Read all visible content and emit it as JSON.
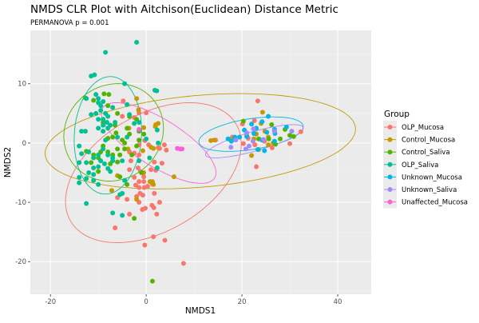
{
  "chart_data": {
    "type": "scatter",
    "title": "NMDS CLR Plot with Aitchison(Euclidean) Distance Metric",
    "subtitle": "PERMANOVA p = 0.001",
    "xlabel": "NMDS1",
    "ylabel": "NMDS2",
    "xlim": [
      -24.2,
      47
    ],
    "ylim": [
      -25.5,
      19
    ],
    "xticks": [
      -20,
      0,
      20,
      40
    ],
    "yticks": [
      -20,
      -10,
      0,
      10
    ],
    "xtick_labels": [
      "-20",
      "0",
      "20",
      "40"
    ],
    "ytick_labels": [
      "-20",
      "-10",
      "0",
      "10"
    ],
    "grid": true,
    "legend": {
      "title": "Group",
      "position": "right"
    },
    "series": [
      {
        "name": "OLP_Mucosa",
        "color": "#F8766D",
        "ellipse": {
          "center": [
            1.5,
            -5
          ],
          "axis1": [
            16,
            9.5
          ],
          "axis2": [
            -9,
            7
          ]
        },
        "points": [
          [
            -4.8,
            7.1
          ],
          [
            -1.5,
            5.1
          ],
          [
            0,
            5.1
          ],
          [
            -5,
            4.5
          ],
          [
            -2.5,
            4.3
          ],
          [
            -3.5,
            -1.5
          ],
          [
            -2.5,
            -1.7
          ],
          [
            -1.5,
            -0.3
          ],
          [
            0.5,
            -0.3
          ],
          [
            2.5,
            -0.8
          ],
          [
            3.8,
            -0.3
          ],
          [
            4.2,
            -1.2
          ],
          [
            2.8,
            -0.9
          ],
          [
            -1.5,
            -2
          ],
          [
            -0.3,
            0.4
          ],
          [
            -3.2,
            -3
          ],
          [
            -1.7,
            -4.2
          ],
          [
            -3.5,
            -4.5
          ],
          [
            -1.2,
            -4.8
          ],
          [
            1.7,
            -3.2
          ],
          [
            3.3,
            -3.4
          ],
          [
            1,
            -4.5
          ],
          [
            2,
            -4.6
          ],
          [
            -2.5,
            -5.8
          ],
          [
            -0.5,
            -5.7
          ],
          [
            -1.5,
            -6.5
          ],
          [
            -0.5,
            -6.5
          ],
          [
            -1.5,
            -7.5
          ],
          [
            -0.4,
            -7.5
          ],
          [
            0.3,
            -7.3
          ],
          [
            -2.2,
            -7.1
          ],
          [
            -1.3,
            -8.5
          ],
          [
            -0.7,
            -8.8
          ],
          [
            -2,
            -9
          ],
          [
            -4,
            -9.5
          ],
          [
            -6,
            -9.2
          ],
          [
            -1.5,
            -10
          ],
          [
            2.8,
            -10
          ],
          [
            1.7,
            -8.5
          ],
          [
            1.3,
            -6.9
          ],
          [
            -0.2,
            -11
          ],
          [
            -0.8,
            -11.2
          ],
          [
            1.2,
            -10.5
          ],
          [
            1.6,
            -10.9
          ],
          [
            -3.5,
            -12
          ],
          [
            2.2,
            -12
          ],
          [
            -6.5,
            -14.3
          ],
          [
            1.5,
            -15.8
          ],
          [
            3.9,
            -16.4
          ],
          [
            -0.3,
            -17.2
          ],
          [
            7.8,
            -20.3
          ],
          [
            23.3,
            7.1
          ],
          [
            22.6,
            3.8
          ],
          [
            20.1,
            3.2
          ],
          [
            18,
            1
          ],
          [
            20.3,
            -0.1
          ],
          [
            21.3,
            0.8
          ],
          [
            22.7,
            -0.3
          ],
          [
            24.7,
            0.3
          ],
          [
            26.3,
            -0.8
          ],
          [
            30,
            -0.1
          ],
          [
            32.3,
            1.9
          ],
          [
            23,
            -4
          ],
          [
            14.5,
            0.5
          ]
        ]
      },
      {
        "name": "Control_Mucosa",
        "color": "#C49A00",
        "ellipse": {
          "center": [
            11.3,
            0.3
          ],
          "axis1": [
            32.4,
            2.3
          ],
          "axis2": [
            -1,
            7.7
          ]
        },
        "points": [
          [
            -2,
            7.5
          ],
          [
            -1.6,
            5.6
          ],
          [
            -0.5,
            2.6
          ],
          [
            2.5,
            3.3
          ],
          [
            1.9,
            2.8
          ],
          [
            2,
            3.1
          ],
          [
            -3.6,
            2.5
          ],
          [
            -3.8,
            -1
          ],
          [
            -0.7,
            -1.3
          ],
          [
            1,
            -0.7
          ],
          [
            1.5,
            -0.9
          ],
          [
            -0.5,
            -5
          ],
          [
            1.3,
            -6.5
          ],
          [
            1.5,
            -7
          ],
          [
            0.8,
            -6.5
          ],
          [
            -2,
            -9.5
          ],
          [
            5.8,
            -5.7
          ],
          [
            -7.2,
            -8
          ],
          [
            -6,
            -5.5
          ],
          [
            13.5,
            0.4
          ],
          [
            14.2,
            0.5
          ],
          [
            24.3,
            5.2
          ],
          [
            23,
            1.5
          ],
          [
            22.5,
            0.7
          ],
          [
            21,
            1.3
          ],
          [
            22,
            -2.1
          ],
          [
            23.5,
            -1.1
          ],
          [
            25.5,
            1
          ],
          [
            26.5,
            0
          ],
          [
            24,
            3.3
          ],
          [
            25.5,
            -0.3
          ],
          [
            19.5,
            1
          ],
          [
            17.8,
            0.6
          ],
          [
            22.7,
            1.6
          ],
          [
            24.8,
            2
          ]
        ]
      },
      {
        "name": "Control_Saliva",
        "color": "#53B400",
        "ellipse": {
          "center": [
            -6.8,
            1.8
          ],
          "axis1": [
            10.3,
            -0.5
          ],
          "axis2": [
            1.5,
            8.2
          ]
        },
        "points": [
          [
            -7.8,
            8.2
          ],
          [
            -8.8,
            8.3
          ],
          [
            -12.7,
            7.6
          ],
          [
            -11,
            7.2
          ],
          [
            -8,
            6.3
          ],
          [
            -6,
            5
          ],
          [
            -3.5,
            4.5
          ],
          [
            -2,
            4
          ],
          [
            -1.5,
            2
          ],
          [
            -0.5,
            1.5
          ],
          [
            -4,
            2.5
          ],
          [
            -6.3,
            1.7
          ],
          [
            -5,
            0.5
          ],
          [
            -3.5,
            1.5
          ],
          [
            -2,
            -0.5
          ],
          [
            -7,
            1
          ],
          [
            -8,
            0.8
          ],
          [
            -9,
            -0.5
          ],
          [
            -6,
            -1
          ],
          [
            -5.5,
            -2
          ],
          [
            -7,
            -2
          ],
          [
            -8,
            -1.5
          ],
          [
            -10,
            -2.5
          ],
          [
            -11,
            -2
          ],
          [
            -12.5,
            -1.4
          ],
          [
            -3,
            -2
          ],
          [
            -4.5,
            -1
          ],
          [
            -6,
            -3.2
          ],
          [
            -7.5,
            -3.5
          ],
          [
            -9.5,
            -1.5
          ],
          [
            -11.5,
            -3.3
          ],
          [
            -5.5,
            -5.7
          ],
          [
            -4,
            -7
          ],
          [
            -1,
            -5
          ],
          [
            -2.5,
            -12.7
          ],
          [
            1.3,
            -23.3
          ],
          [
            -9,
            3.5
          ],
          [
            -6.5,
            3
          ],
          [
            -4.5,
            0
          ],
          [
            -1.5,
            0.5
          ],
          [
            20.3,
            3.7
          ],
          [
            26.2,
            3.1
          ],
          [
            28,
            0.7
          ],
          [
            29,
            2.3
          ],
          [
            30,
            1.3
          ],
          [
            30.8,
            1.1
          ],
          [
            27,
            -0.2
          ],
          [
            23.5,
            0.7
          ],
          [
            25.6,
            0.7
          ],
          [
            -10,
            -4.8
          ]
        ]
      },
      {
        "name": "OLP_Saliva",
        "color": "#00C094",
        "ellipse": {
          "center": [
            -8,
            1.3
          ],
          "axis1": [
            0.8,
            9.9
          ],
          "axis2": [
            7,
            -0.4
          ]
        },
        "points": [
          [
            -2,
            17
          ],
          [
            -8.5,
            15.3
          ],
          [
            -11.5,
            11.3
          ],
          [
            -10.8,
            11.5
          ],
          [
            -4.5,
            10
          ],
          [
            1.8,
            8.9
          ],
          [
            2.2,
            8.8
          ],
          [
            -10.5,
            8.2
          ],
          [
            -12.5,
            7.5
          ],
          [
            -10,
            7.5
          ],
          [
            -9,
            7
          ],
          [
            -10,
            6.8
          ],
          [
            -9.5,
            6.3
          ],
          [
            -7,
            6
          ],
          [
            -4,
            6.5
          ],
          [
            -10.5,
            5
          ],
          [
            -11.5,
            4.8
          ],
          [
            -9.5,
            5.5
          ],
          [
            -8.5,
            5
          ],
          [
            -8,
            4.5
          ],
          [
            -9,
            4
          ],
          [
            -10,
            4
          ],
          [
            -8.2,
            3.5
          ],
          [
            -7.5,
            3
          ],
          [
            -9,
            3
          ],
          [
            -10,
            2.5
          ],
          [
            -9,
            2
          ],
          [
            -8,
            2.5
          ],
          [
            -6.5,
            3.5
          ],
          [
            -2.5,
            3.3
          ],
          [
            2.3,
            2.2
          ],
          [
            -13.5,
            2
          ],
          [
            -12.7,
            2
          ],
          [
            -6,
            1
          ],
          [
            -8.5,
            0.5
          ],
          [
            -4,
            1
          ],
          [
            0,
            0.7
          ],
          [
            2.5,
            0
          ],
          [
            -14,
            -0.5
          ],
          [
            -12,
            -1.5
          ],
          [
            -13.5,
            -1.8
          ],
          [
            -9,
            -1
          ],
          [
            -10,
            -2
          ],
          [
            -8,
            -2
          ],
          [
            -7,
            -2.5
          ],
          [
            -9.5,
            -3
          ],
          [
            -11,
            -2.5
          ],
          [
            -12.5,
            -3.3
          ],
          [
            -8.7,
            -3.5
          ],
          [
            -7,
            -3
          ],
          [
            -5,
            -3
          ],
          [
            -1.5,
            -3
          ],
          [
            -14,
            -3.3
          ],
          [
            -11,
            -4.2
          ],
          [
            -10,
            -4
          ],
          [
            -8,
            -4.3
          ],
          [
            -7.5,
            -4.8
          ],
          [
            -12,
            -5
          ],
          [
            -11,
            -5.3
          ],
          [
            -14,
            -5.8
          ],
          [
            -12.5,
            -6
          ],
          [
            -11,
            -6.3
          ],
          [
            -4.5,
            -6.3
          ],
          [
            -14,
            -6.7
          ],
          [
            -10,
            -7
          ],
          [
            -5.5,
            -8.7
          ],
          [
            -5,
            -8.5
          ],
          [
            2.3,
            -4.2
          ],
          [
            -12.5,
            -10.2
          ],
          [
            -7,
            -11.8
          ],
          [
            -5,
            -12.2
          ],
          [
            -1.5,
            3.5
          ],
          [
            -3.5,
            4.8
          ],
          [
            0.7,
            -2.5
          ]
        ]
      },
      {
        "name": "Unknown_Mucosa",
        "color": "#00B6EB",
        "ellipse": {
          "center": [
            21.9,
            1.5
          ],
          "axis1": [
            10.9,
            1.3
          ],
          "axis2": [
            -0.2,
            2.6
          ]
        },
        "points": [
          [
            25.5,
            4.5
          ],
          [
            24.2,
            3.6
          ],
          [
            22,
            3.2
          ],
          [
            23,
            2.5
          ],
          [
            26.8,
            2.3
          ],
          [
            25.2,
            1.8
          ],
          [
            26.9,
            1.6
          ],
          [
            29.3,
            2.7
          ],
          [
            22.5,
            1.6
          ],
          [
            21,
            1.1
          ],
          [
            20.5,
            2.2
          ],
          [
            19.5,
            1
          ],
          [
            18.5,
            1
          ],
          [
            17.1,
            0.7
          ],
          [
            17.8,
            0.3
          ],
          [
            26.8,
            0.3
          ],
          [
            24.2,
            0.5
          ],
          [
            23.3,
            -1.1
          ],
          [
            24.7,
            -1.3
          ]
        ]
      },
      {
        "name": "Unknown_Saliva",
        "color": "#A58AFF",
        "ellipse": {
          "center": [
            22.6,
            0.3
          ],
          "axis1": [
            10.2,
            2.3
          ],
          "axis2": [
            -0.4,
            1.6
          ]
        },
        "points": [
          [
            22.4,
            2.4
          ],
          [
            21,
            1.7
          ],
          [
            26.8,
            2
          ],
          [
            30.4,
            2
          ],
          [
            17.7,
            -0.7
          ],
          [
            20.8,
            -1
          ],
          [
            21.5,
            -0.5
          ],
          [
            18.7,
            0.5
          ],
          [
            24.5,
            0.6
          ],
          [
            22.3,
            0.3
          ]
        ]
      },
      {
        "name": "Unaffected_Mucosa",
        "color": "#FB61D7",
        "ellipse": {
          "center": [
            2.6,
            0
          ],
          "axis1": [
            11.3,
            -3.2
          ],
          "axis2": [
            -4,
            6
          ]
        },
        "points": [
          [
            6.5,
            -0.9
          ],
          [
            7.1,
            -1
          ],
          [
            7.5,
            -1
          ],
          [
            -1.5,
            2.3
          ]
        ]
      }
    ]
  }
}
